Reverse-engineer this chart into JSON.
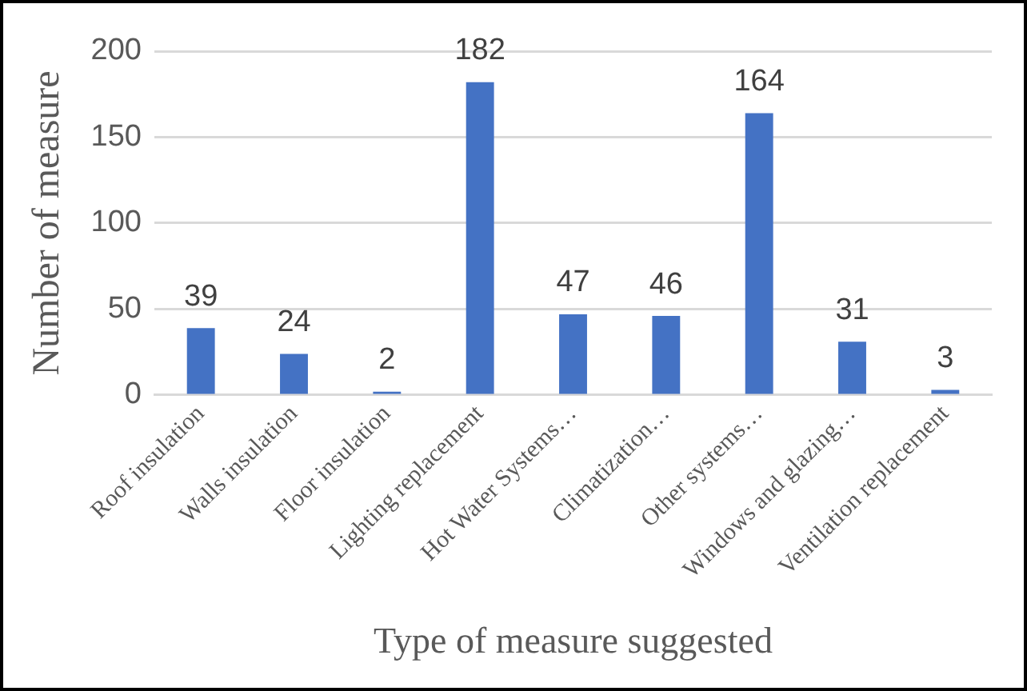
{
  "chart_data": {
    "type": "bar",
    "xlabel": "Type of measure suggested",
    "ylabel": "Number of measure",
    "categories": [
      "Roof insulation",
      "Walls insulation",
      "Floor insulation",
      "Lighting replacement",
      "Hot Water Systems…",
      "Climatization…",
      "Other systems…",
      "Windows and glazing…",
      "Ventilation replacement"
    ],
    "values": [
      39,
      24,
      2,
      182,
      47,
      46,
      164,
      31,
      3
    ],
    "color": "#4472c4",
    "ylim": [
      0,
      200
    ],
    "yticks": [
      0,
      50,
      100,
      150,
      200
    ],
    "grid": "y",
    "data_labels": true
  }
}
